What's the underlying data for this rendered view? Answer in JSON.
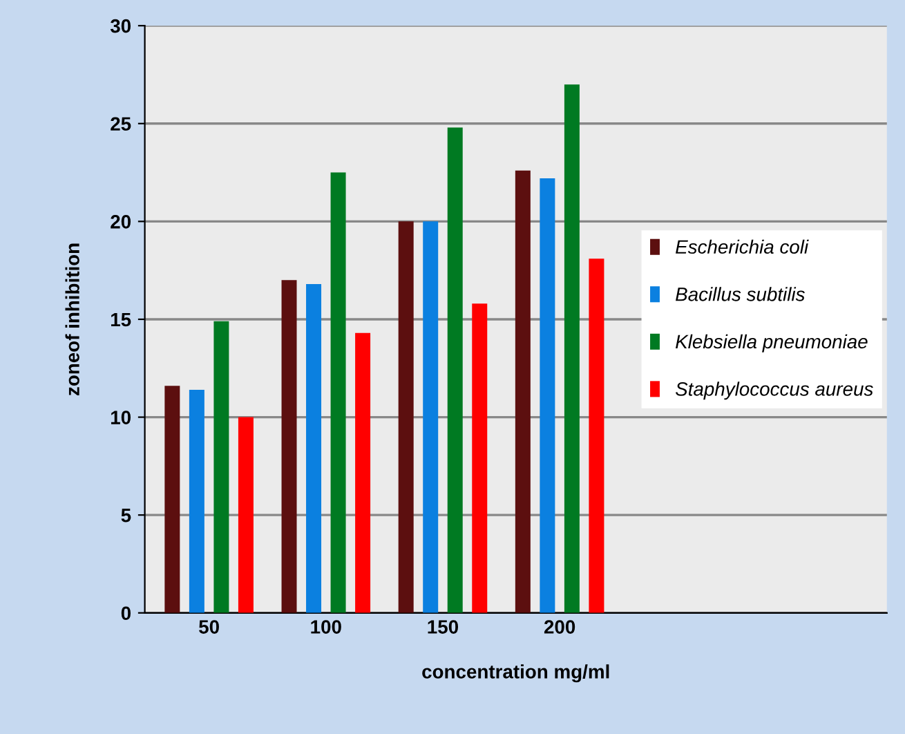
{
  "chart_data": {
    "type": "bar",
    "xlabel": "concentration mg/ml",
    "ylabel": "zoneof inhibition",
    "categories": [
      "50",
      "100",
      "150",
      "200"
    ],
    "series": [
      {
        "name": "Escherichia coli",
        "color": "#5c0f0f",
        "values": [
          11.6,
          17.0,
          20.0,
          22.6
        ]
      },
      {
        "name": "Bacillus subtilis",
        "color": "#0b80e0",
        "values": [
          11.4,
          16.8,
          20.0,
          22.2
        ]
      },
      {
        "name": "Klebsiella pneumoniae",
        "color": "#007a22",
        "values": [
          14.9,
          22.5,
          24.8,
          27.0
        ]
      },
      {
        "name": "Staphylococcus aureus",
        "color": "#ff0000",
        "values": [
          10.0,
          14.3,
          15.8,
          18.1
        ]
      }
    ],
    "ylim": [
      0,
      30
    ],
    "yticks": [
      0,
      5,
      10,
      15,
      20,
      25,
      30
    ],
    "grid": "y",
    "legend": "right"
  }
}
